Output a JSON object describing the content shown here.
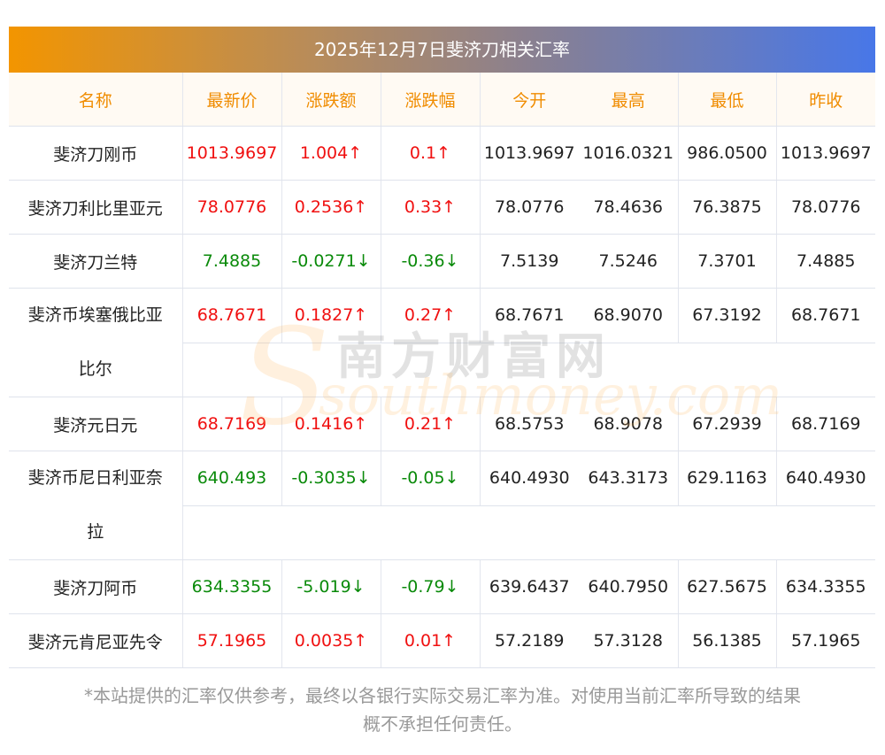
{
  "title": "2025年12月7日斐济刀相关汇率",
  "headers": [
    "名称",
    "最新价",
    "涨跌额",
    "涨跌幅",
    "今开",
    "最高",
    "最低",
    "昨收"
  ],
  "rows": [
    {
      "name": [
        "斐济刀刚币"
      ],
      "dir": "up",
      "latest": "1013.9697",
      "change": "1.004↑",
      "pct": "0.1↑",
      "open": "1013.9697",
      "high": "1016.0321",
      "low": "986.0500",
      "prev": "1013.9697"
    },
    {
      "name": [
        "斐济刀利比里亚元"
      ],
      "dir": "up",
      "latest": "78.0776",
      "change": "0.2536↑",
      "pct": "0.33↑",
      "open": "78.0776",
      "high": "78.4636",
      "low": "76.3875",
      "prev": "78.0776"
    },
    {
      "name": [
        "斐济刀兰特"
      ],
      "dir": "down",
      "latest": "7.4885",
      "change": "-0.0271↓",
      "pct": "-0.36↓",
      "open": "7.5139",
      "high": "7.5246",
      "low": "7.3701",
      "prev": "7.4885"
    },
    {
      "name": [
        "斐济币埃塞俄比亚",
        "比尔"
      ],
      "dir": "up",
      "latest": "68.7671",
      "change": "0.1827↑",
      "pct": "0.27↑",
      "open": "68.7671",
      "high": "68.9070",
      "low": "67.3192",
      "prev": "68.7671"
    },
    {
      "name": [
        "斐济元日元"
      ],
      "dir": "up",
      "latest": "68.7169",
      "change": "0.1416↑",
      "pct": "0.21↑",
      "open": "68.5753",
      "high": "68.9078",
      "low": "67.2939",
      "prev": "68.7169"
    },
    {
      "name": [
        "斐济币尼日利亚奈",
        "拉"
      ],
      "dir": "down",
      "latest": "640.493",
      "change": "-0.3035↓",
      "pct": "-0.05↓",
      "open": "640.4930",
      "high": "643.3173",
      "low": "629.1163",
      "prev": "640.4930"
    },
    {
      "name": [
        "斐济刀阿币"
      ],
      "dir": "down",
      "latest": "634.3355",
      "change": "-5.019↓",
      "pct": "-0.79↓",
      "open": "639.6437",
      "high": "640.7950",
      "low": "627.5675",
      "prev": "634.3355"
    },
    {
      "name": [
        "斐济元肯尼亚先令"
      ],
      "dir": "up",
      "latest": "57.1965",
      "change": "0.0035↑",
      "pct": "0.01↑",
      "open": "57.2189",
      "high": "57.3128",
      "low": "56.1385",
      "prev": "57.1965"
    }
  ],
  "watermark": {
    "cn": "南方财富网",
    "en": "southmoney.com"
  },
  "colors": {
    "up": "#f01010",
    "down": "#0a8a0a",
    "header_text": "#f08c00"
  },
  "note_line1": "*本站提供的汇率仅供参考，最终以各银行实际交易汇率为准。对使用当前汇率所导致的结果",
  "note_line2": "概不承担任何责任。"
}
